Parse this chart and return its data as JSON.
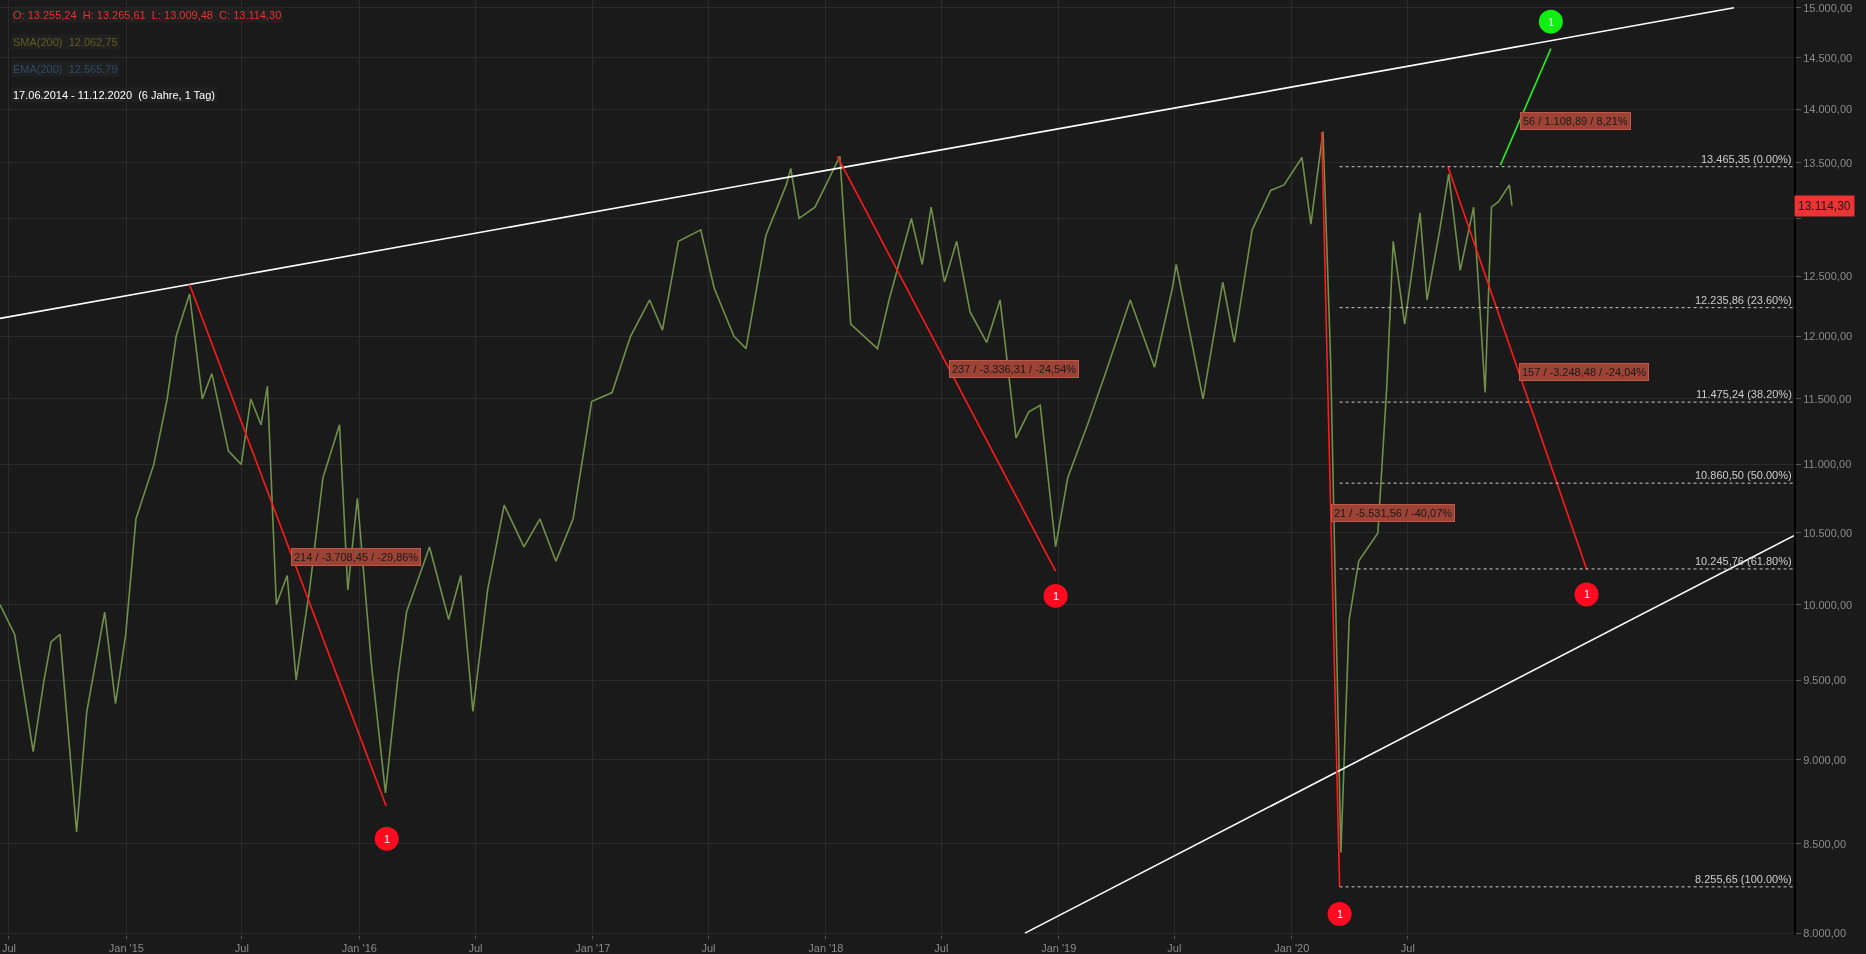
{
  "chart_data": {
    "type": "line",
    "log": "y",
    "grid": true,
    "xlim": [
      "2014-06-17",
      "2022-02-26"
    ],
    "ylim": [
      7990,
      15080
    ],
    "xticks": [
      {
        "value": "2014-07-01",
        "label": "Jul"
      },
      {
        "value": "2015-01-01",
        "label": "Jan '15"
      },
      {
        "value": "2015-07-01",
        "label": "Jul"
      },
      {
        "value": "2016-01-01",
        "label": "Jan '16"
      },
      {
        "value": "2016-07-01",
        "label": "Jul"
      },
      {
        "value": "2017-01-01",
        "label": "Jan '17"
      },
      {
        "value": "2017-07-01",
        "label": "Jul"
      },
      {
        "value": "2018-01-01",
        "label": "Jan '18"
      },
      {
        "value": "2018-07-01",
        "label": "Jul"
      },
      {
        "value": "2019-01-01",
        "label": "Jan '19"
      },
      {
        "value": "2019-07-01",
        "label": "Jul"
      },
      {
        "value": "2020-01-01",
        "label": "Jan '20"
      },
      {
        "value": "2020-07-01",
        "label": "Jul"
      }
    ],
    "yticks": [
      {
        "value": 8000,
        "label": "8.000,00"
      },
      {
        "value": 8500,
        "label": "8.500,00"
      },
      {
        "value": 9000,
        "label": "9.000,00"
      },
      {
        "value": 9500,
        "label": "9.500,00"
      },
      {
        "value": 10000,
        "label": "10.000,00"
      },
      {
        "value": 10500,
        "label": "10.500,00"
      },
      {
        "value": 11000,
        "label": "11.000,00"
      },
      {
        "value": 11500,
        "label": "11.500,00"
      },
      {
        "value": 12000,
        "label": "12.000,00"
      },
      {
        "value": 12500,
        "label": "12.500,00"
      },
      {
        "value": 13000,
        "label": null
      },
      {
        "value": 13500,
        "label": "13.500,00"
      },
      {
        "value": 14000,
        "label": "14.000,00"
      },
      {
        "value": 14500,
        "label": "14.500,00"
      },
      {
        "value": 15000,
        "label": "15.000,00"
      }
    ],
    "series": [
      {
        "color": "#6f8f4a",
        "x": [
          "2014-06-17",
          "2014-07-10",
          "2014-08-08",
          "2014-08-25",
          "2014-09-05",
          "2014-09-19",
          "2014-10-15",
          "2014-10-31",
          "2014-11-28",
          "2014-12-15",
          "2014-12-31",
          "2015-01-16",
          "2015-02-13",
          "2015-03-06",
          "2015-03-20",
          "2015-04-10",
          "2015-04-30",
          "2015-05-15",
          "2015-06-10",
          "2015-06-30",
          "2015-07-15",
          "2015-07-31",
          "2015-08-10",
          "2015-08-24",
          "2015-09-10",
          "2015-09-24",
          "2015-10-15",
          "2015-11-05",
          "2015-12-01",
          "2015-12-14",
          "2015-12-29",
          "2016-01-20",
          "2016-02-11",
          "2016-03-01",
          "2016-03-15",
          "2016-04-20",
          "2016-05-20",
          "2016-06-08",
          "2016-06-27",
          "2016-07-20",
          "2016-08-15",
          "2016-09-15",
          "2016-10-10",
          "2016-11-04",
          "2016-12-01",
          "2016-12-30",
          "2017-01-31",
          "2017-03-01",
          "2017-03-31",
          "2017-04-20",
          "2017-05-15",
          "2017-06-19",
          "2017-07-10",
          "2017-08-10",
          "2017-08-29",
          "2017-09-29",
          "2017-10-31",
          "2017-11-07",
          "2017-11-20",
          "2017-12-15",
          "2018-01-23",
          "2018-02-09",
          "2018-03-23",
          "2018-04-10",
          "2018-05-15",
          "2018-06-01",
          "2018-06-15",
          "2018-07-06",
          "2018-07-25",
          "2018-08-15",
          "2018-09-10",
          "2018-10-01",
          "2018-10-26",
          "2018-11-15",
          "2018-12-03",
          "2018-12-27",
          "2019-01-15",
          "2019-02-15",
          "2019-03-15",
          "2019-04-23",
          "2019-05-31",
          "2019-06-28",
          "2019-07-04",
          "2019-08-15",
          "2019-09-15",
          "2019-10-03",
          "2019-10-31",
          "2019-11-29",
          "2019-12-20",
          "2020-01-17",
          "2020-01-31",
          "2020-02-19",
          "2020-03-02",
          "2020-03-18",
          "2020-03-31",
          "2020-04-15",
          "2020-05-15",
          "2020-05-29",
          "2020-06-08",
          "2020-06-26",
          "2020-07-20",
          "2020-07-31",
          "2020-08-20",
          "2020-09-03",
          "2020-09-21",
          "2020-10-12",
          "2020-10-30",
          "2020-11-09",
          "2020-11-20",
          "2020-12-07",
          "2020-12-11"
        ],
        "values": [
          10000,
          9800,
          9050,
          9500,
          9750,
          9800,
          8570,
          9300,
          9950,
          9350,
          9800,
          10600,
          11000,
          11500,
          12000,
          12350,
          11500,
          11700,
          11100,
          11000,
          11500,
          11300,
          11600,
          10000,
          10200,
          9500,
          10100,
          10900,
          11300,
          10100,
          10750,
          9600,
          8800,
          9500,
          9950,
          10400,
          9900,
          10200,
          9300,
          10100,
          10700,
          10400,
          10600,
          10300,
          10600,
          11480,
          11550,
          12000,
          12300,
          12050,
          12800,
          12900,
          12400,
          12000,
          11900,
          12850,
          13300,
          13450,
          13000,
          13100,
          13560,
          12100,
          11900,
          12300,
          13000,
          12600,
          13100,
          12450,
          12800,
          12200,
          11950,
          12300,
          11200,
          11400,
          11450,
          10400,
          10900,
          11300,
          11700,
          12300,
          11750,
          12400,
          12600,
          11500,
          12450,
          11950,
          12900,
          13250,
          13300,
          13550,
          12950,
          13790,
          11800,
          8450,
          9900,
          10300,
          10500,
          11600,
          12800,
          12100,
          13050,
          12300,
          12900,
          13400,
          12550,
          13100,
          11550,
          13100,
          13150,
          13300,
          13114.3
        ]
      },
      {
        "type": "line",
        "color": "#ffffff",
        "x": [
          "2014-06-17",
          "2021-11-24"
        ],
        "values": [
          12147,
          15000
        ]
      },
      {
        "type": "line",
        "color": "#ffffff",
        "x": [
          "2018-11-09",
          "2022-02-26"
        ],
        "values": [
          8000,
          10480
        ]
      },
      {
        "type": "line",
        "color": "#ff1a1a",
        "x": [
          "2015-04-10",
          "2016-02-12"
        ],
        "values": [
          12430,
          8722
        ]
      },
      {
        "type": "line",
        "color": "#ff1a1a",
        "x": [
          "2018-01-19",
          "2018-12-27"
        ],
        "values": [
          13560,
          10230
        ]
      },
      {
        "type": "line",
        "color": "#ff1a1a",
        "x": [
          "2020-02-17",
          "2020-03-16"
        ],
        "values": [
          13787,
          8255.65
        ]
      },
      {
        "type": "line",
        "color": "#ff1a1a",
        "x": [
          "2020-09-02",
          "2021-04-07"
        ],
        "values": [
          13460,
          10245
        ]
      },
      {
        "type": "line",
        "color": "#22ee22",
        "x": [
          "2020-11-23",
          "2021-02-10"
        ],
        "values": [
          13480,
          14590
        ]
      },
      {
        "type": "line",
        "name": "13.465,35 (0.00%)",
        "color": "#cccccc",
        "line_style": "dotted",
        "x": [
          "2020-03-16",
          "2022-02-26"
        ],
        "values": [
          13465.35,
          13465.35
        ]
      },
      {
        "type": "line",
        "name": "12.235,86 (23.60%)",
        "color": "#cccccc",
        "line_style": "dotted",
        "x": [
          "2020-03-16",
          "2022-02-26"
        ],
        "values": [
          12235.86,
          12235.86
        ]
      },
      {
        "type": "line",
        "name": "11.475,24 (38.20%)",
        "color": "#cccccc",
        "line_style": "dotted",
        "x": [
          "2020-03-16",
          "2022-02-26"
        ],
        "values": [
          11475.24,
          11475.24
        ]
      },
      {
        "type": "line",
        "name": "10.860,50 (50.00%)",
        "color": "#cccccc",
        "line_style": "dotted",
        "x": [
          "2020-03-16",
          "2022-02-26"
        ],
        "values": [
          10860.5,
          10860.5
        ]
      },
      {
        "type": "line",
        "name": "10.245,76 (61.80%)",
        "color": "#cccccc",
        "line_style": "dotted",
        "x": [
          "2020-03-16",
          "2022-02-26"
        ],
        "values": [
          10245.76,
          10245.76
        ]
      },
      {
        "type": "line",
        "name": "8.255,65 (100.00%)",
        "color": "#cccccc",
        "line_style": "dotted",
        "x": [
          "2020-03-16",
          "2022-02-26"
        ],
        "values": [
          8255.65,
          8255.65
        ]
      },
      {
        "type": "scatter",
        "color": "#ff0a1e",
        "x": [
          "2016-02-13",
          "2018-12-27",
          "2020-03-16",
          "2021-04-07"
        ],
        "values": [
          8530,
          10060,
          8105,
          10070
        ]
      },
      {
        "type": "scatter",
        "color": "#11ee11",
        "x": [
          "2021-02-10"
        ],
        "values": [
          14860
        ]
      }
    ],
    "annotations": [
      "O: 13.255,24  H: 13.265,61  L: 13.009,48  C: 13.114,30",
      "SMA(200)  12.062,75",
      "EMA(200)  12.565,79",
      "17.06.2014 - 11.12.2020  (6 Jahre, 1 Tag)",
      {
        "text": "1",
        "x": "2016-02-13",
        "y": 8530
      },
      {
        "text": "1",
        "x": "2018-12-27",
        "y": 10060
      },
      {
        "text": "1",
        "x": "2020-03-16",
        "y": 8105
      },
      {
        "text": "1",
        "x": "2021-04-07",
        "y": 10070
      },
      {
        "text": "1",
        "x": "2021-02-10",
        "y": 14860
      },
      {
        "text": "214 / -3.708,45 / -29,86%",
        "x": "2015-09-16",
        "y": 10330
      },
      {
        "text": "237 / -3.336,31 / -24,54%",
        "x": "2018-07-13",
        "y": 11740
      },
      {
        "text": "21 / -5.531,56 / -40,07%",
        "x": "2020-03-02",
        "y": 10640
      },
      {
        "text": "157 / -3.248,48 / -24,04%",
        "x": "2020-12-22",
        "y": 11710
      },
      {
        "text": "56 / 1.108,89 / 8,21%",
        "x": "2020-12-23",
        "y": 13890
      },
      "13.114,30"
    ]
  }
}
